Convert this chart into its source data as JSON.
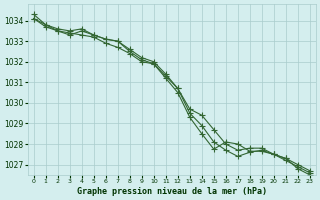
{
  "x": [
    0,
    1,
    2,
    3,
    4,
    5,
    6,
    7,
    8,
    9,
    10,
    11,
    12,
    13,
    14,
    15,
    16,
    17,
    18,
    19,
    20,
    21,
    22,
    23
  ],
  "line1": [
    1034.3,
    1033.8,
    1033.6,
    1033.5,
    1033.6,
    1033.3,
    1033.1,
    1033.0,
    1032.6,
    1032.2,
    1032.0,
    1031.4,
    1030.7,
    1029.7,
    1029.4,
    1028.7,
    1028.0,
    1027.7,
    1027.8,
    1027.8,
    1027.5,
    1027.3,
    1027.0,
    1026.7
  ],
  "line2": [
    1034.1,
    1033.8,
    1033.5,
    1033.4,
    1033.3,
    1033.2,
    1032.9,
    1032.7,
    1032.4,
    1032.0,
    1031.9,
    1031.3,
    1030.7,
    1029.5,
    1028.9,
    1028.1,
    1027.7,
    1027.4,
    1027.6,
    1027.7,
    1027.5,
    1027.2,
    1026.9,
    1026.6
  ],
  "line3": [
    1034.1,
    1033.7,
    1033.5,
    1033.3,
    1033.5,
    1033.3,
    1033.1,
    1033.0,
    1032.5,
    1032.1,
    1031.9,
    1031.2,
    1030.5,
    1029.3,
    1028.5,
    1027.75,
    1028.1,
    1028.0,
    1027.65,
    1027.65,
    1027.5,
    1027.3,
    1026.8,
    1026.5
  ],
  "bg_color": "#d4eeee",
  "grid_color": "#aacccc",
  "line_color": "#336633",
  "marker_color": "#336633",
  "xlabel": "Graphe pression niveau de la mer (hPa)",
  "xlabel_color": "#003300",
  "tick_color": "#003300",
  "ylim": [
    1026.5,
    1034.8
  ],
  "yticks": [
    1027,
    1028,
    1029,
    1030,
    1031,
    1032,
    1033,
    1034
  ],
  "xlim": [
    -0.5,
    23.5
  ]
}
